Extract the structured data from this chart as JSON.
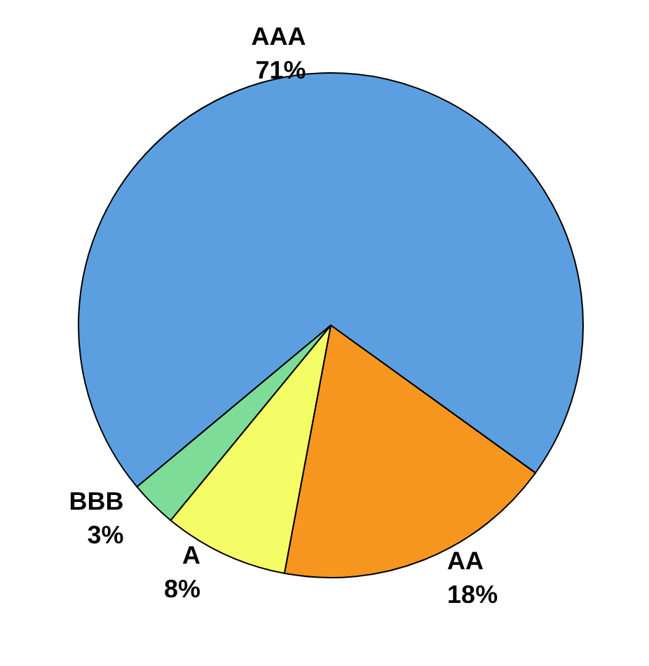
{
  "chart_data": {
    "type": "pie",
    "categories": [
      "AAA",
      "AA",
      "A",
      "BBB"
    ],
    "values": [
      71,
      18,
      8,
      3
    ],
    "value_labels": [
      "71%",
      "18%",
      "8%",
      "3%"
    ],
    "colors": [
      "#5b9fe0",
      "#f7961e",
      "#f5fd66",
      "#7ddc98"
    ]
  }
}
